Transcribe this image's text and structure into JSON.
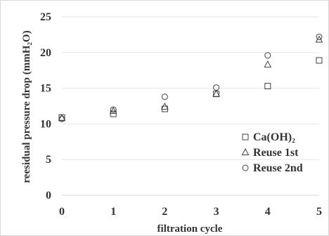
{
  "chart_data": {
    "type": "scatter",
    "xlabel": "filtration cycle",
    "ylabel": "reesidual pressure drop (mmH₂O)",
    "xlim": [
      0,
      5
    ],
    "ylim": [
      0,
      25
    ],
    "xticks": [
      "0",
      "1",
      "2",
      "3",
      "4",
      "5"
    ],
    "yticks": [
      "0",
      "5",
      "10",
      "15",
      "20",
      "25"
    ],
    "grid": true,
    "legend_position": "bottom-right",
    "series": [
      {
        "name": "Ca(OH)₂",
        "marker": "square",
        "x": [
          0,
          1,
          2,
          3,
          4,
          5
        ],
        "y": [
          10.9,
          11.4,
          12.1,
          14.2,
          15.3,
          18.9
        ]
      },
      {
        "name": "Reuse 1st",
        "marker": "triangle",
        "x": [
          0,
          1,
          2,
          3,
          4,
          5
        ],
        "y": [
          10.8,
          11.8,
          12.4,
          14.2,
          18.3,
          21.8
        ]
      },
      {
        "name": "Reuse 2nd",
        "marker": "circle",
        "x": [
          0,
          1,
          2,
          3,
          4,
          5
        ],
        "y": [
          10.7,
          12.0,
          13.8,
          15.1,
          19.6,
          22.2
        ]
      }
    ]
  }
}
